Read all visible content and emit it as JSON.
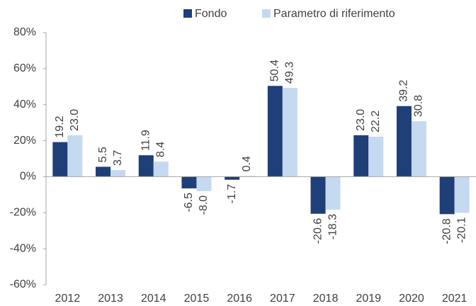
{
  "chart_data": {
    "type": "bar",
    "categories": [
      "2012",
      "2013",
      "2014",
      "2015",
      "2016",
      "2017",
      "2018",
      "2019",
      "2020",
      "2021"
    ],
    "series": [
      {
        "name": "Fondo",
        "color": "#1f3f78",
        "values": [
          19.2,
          5.5,
          11.9,
          -6.5,
          -1.7,
          50.4,
          -20.6,
          23.0,
          39.2,
          -20.8
        ],
        "value_labels": [
          "19.2",
          "5.5",
          "11.9",
          "-6.5",
          "-1.7",
          "50.4",
          "-20.6",
          "23.0",
          "39.2",
          "-20.8"
        ]
      },
      {
        "name": "Parametro di riferimento",
        "color": "#c5d9f1",
        "values": [
          23.0,
          3.7,
          8.4,
          -8.0,
          0.4,
          49.3,
          -18.3,
          22.2,
          30.8,
          -20.1
        ],
        "value_labels": [
          "23.0",
          "3.7",
          "8.4",
          "-8.0",
          "0.4",
          "49.3",
          "-18.3",
          "22.2",
          "30.8",
          "-20.1"
        ]
      }
    ],
    "ylim": [
      -60,
      80
    ],
    "yticks": [
      {
        "value": -60,
        "label": "-60%"
      },
      {
        "value": -40,
        "label": "-40%"
      },
      {
        "value": -20,
        "label": "-20%"
      },
      {
        "value": 0,
        "label": "0%"
      },
      {
        "value": 20,
        "label": "20%"
      },
      {
        "value": 40,
        "label": "40%"
      },
      {
        "value": 60,
        "label": "60%"
      },
      {
        "value": 80,
        "label": "80%"
      }
    ],
    "grid": false,
    "legend": "top"
  }
}
